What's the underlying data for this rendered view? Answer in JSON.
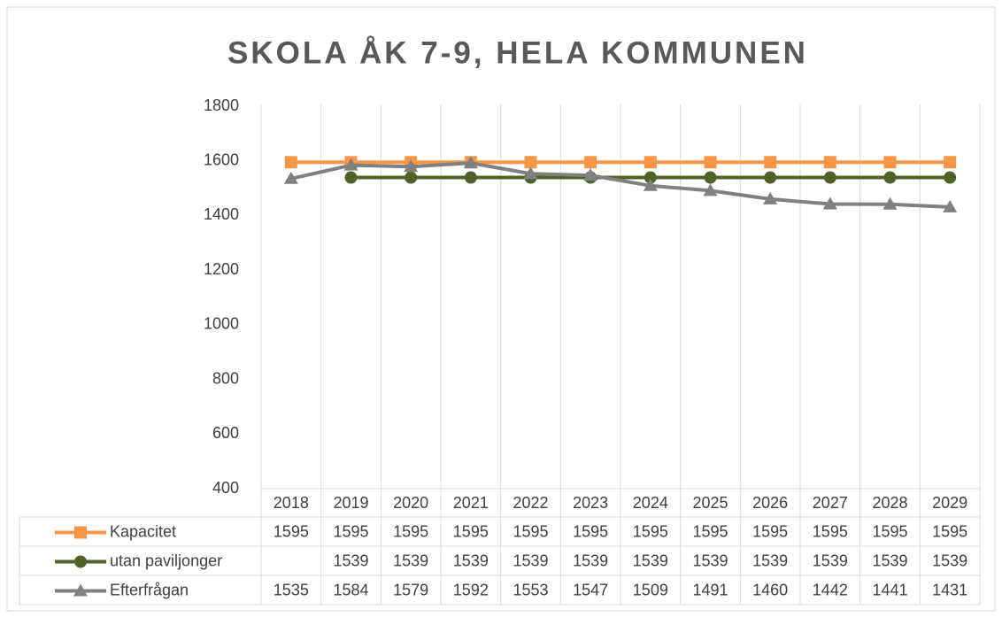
{
  "chart_data": {
    "type": "line",
    "title": "SKOLA ÅK 7-9, HELA KOMMUNEN",
    "categories": [
      "2018",
      "2019",
      "2020",
      "2021",
      "2022",
      "2023",
      "2024",
      "2025",
      "2026",
      "2027",
      "2028",
      "2029"
    ],
    "series": [
      {
        "name": "Kapacitet",
        "color": "#f79646",
        "marker": "square",
        "values": [
          1595,
          1595,
          1595,
          1595,
          1595,
          1595,
          1595,
          1595,
          1595,
          1595,
          1595,
          1595
        ]
      },
      {
        "name": "utan paviljonger",
        "color": "#4f6228",
        "marker": "circle",
        "values": [
          null,
          1539,
          1539,
          1539,
          1539,
          1539,
          1539,
          1539,
          1539,
          1539,
          1539,
          1539
        ]
      },
      {
        "name": "Efterfrågan",
        "color": "#808080",
        "marker": "triangle",
        "values": [
          1535,
          1584,
          1579,
          1592,
          1553,
          1547,
          1509,
          1491,
          1460,
          1442,
          1441,
          1431
        ]
      }
    ],
    "ylim": [
      400,
      1800
    ],
    "yticks": [
      400,
      600,
      800,
      1000,
      1200,
      1400,
      1600,
      1800
    ],
    "grid": true
  }
}
